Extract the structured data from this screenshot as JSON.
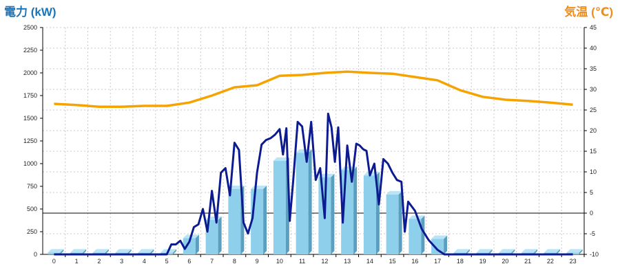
{
  "chart_data": {
    "type": "bar",
    "y_left_label": "電力 (kW)",
    "y_right_label": "気温 (℃)",
    "categories": [
      "0",
      "1",
      "2",
      "3",
      "4",
      "5",
      "6",
      "7",
      "8",
      "9",
      "10",
      "11",
      "12",
      "13",
      "14",
      "15",
      "16",
      "17",
      "18",
      "19",
      "20",
      "21",
      "22",
      "23"
    ],
    "y_left_ticks": [
      "0",
      "250",
      "500",
      "750",
      "1000",
      "1250",
      "1500",
      "1750",
      "2000",
      "2250",
      "2500"
    ],
    "y_right_ticks": [
      "-10",
      "-5",
      "0",
      "5",
      "10",
      "15",
      "20",
      "25",
      "30",
      "35",
      "40",
      "45"
    ],
    "ylim_left": [
      0,
      2500
    ],
    "ylim_right": [
      -10,
      45
    ],
    "grid": true,
    "bar_series": {
      "values": [
        20,
        20,
        20,
        20,
        20,
        20,
        180,
        380,
        720,
        720,
        1030,
        1120,
        850,
        930,
        870,
        660,
        390,
        170,
        20,
        20,
        20,
        20,
        20,
        20
      ]
    },
    "temperature_series": {
      "x": [
        0,
        1,
        2,
        3,
        4,
        5,
        6,
        7,
        8,
        9,
        10,
        11,
        12,
        13,
        14,
        15,
        16,
        17,
        18,
        19,
        20,
        21,
        22,
        23
      ],
      "values": [
        26.5,
        26.2,
        25.8,
        25.8,
        26.0,
        26.0,
        26.8,
        28.5,
        30.5,
        31.0,
        33.3,
        33.5,
        34.0,
        34.3,
        34.0,
        33.8,
        33.0,
        32.2,
        29.8,
        28.2,
        27.5,
        27.2,
        26.8,
        26.3
      ]
    },
    "power_series": {
      "x": [
        0,
        1,
        2,
        3,
        4,
        5,
        5.2,
        5.4,
        5.6,
        5.8,
        6.0,
        6.2,
        6.4,
        6.6,
        6.8,
        7.0,
        7.2,
        7.4,
        7.6,
        7.8,
        8.0,
        8.2,
        8.4,
        8.6,
        8.8,
        9.0,
        9.2,
        9.4,
        9.6,
        9.8,
        10.0,
        10.15,
        10.3,
        10.45,
        10.6,
        10.8,
        11.0,
        11.2,
        11.4,
        11.6,
        11.8,
        12.0,
        12.15,
        12.3,
        12.45,
        12.6,
        12.8,
        13.0,
        13.2,
        13.4,
        13.55,
        13.7,
        13.85,
        14.0,
        14.2,
        14.4,
        14.6,
        14.8,
        15.0,
        15.2,
        15.4,
        15.55,
        15.7,
        16.0,
        16.3,
        16.6,
        17.0,
        17.3,
        17.6,
        18,
        19,
        20,
        21,
        22,
        23
      ],
      "values": [
        0,
        0,
        0,
        0,
        0,
        0,
        110,
        110,
        150,
        60,
        140,
        300,
        330,
        500,
        250,
        700,
        350,
        900,
        950,
        650,
        1230,
        1150,
        350,
        230,
        400,
        900,
        1210,
        1260,
        1280,
        1320,
        1380,
        1100,
        1390,
        370,
        800,
        1460,
        1410,
        1020,
        1460,
        820,
        950,
        400,
        1550,
        1400,
        1020,
        1400,
        350,
        1200,
        800,
        1220,
        1200,
        1160,
        1140,
        870,
        1000,
        550,
        1050,
        1000,
        900,
        820,
        800,
        250,
        580,
        480,
        280,
        160,
        50,
        0,
        0,
        0,
        0,
        0,
        0,
        0,
        0
      ]
    }
  }
}
